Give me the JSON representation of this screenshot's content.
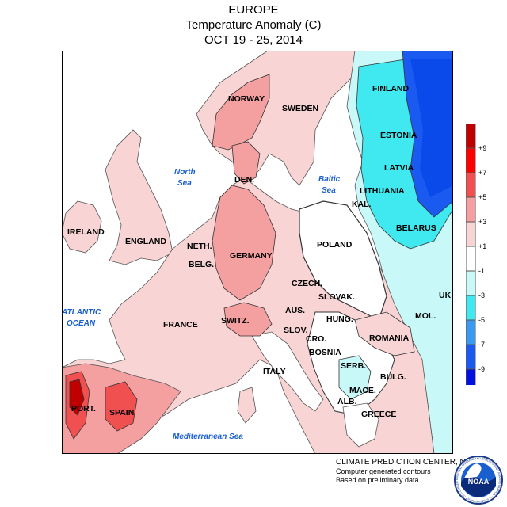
{
  "header": {
    "line1": "EUROPE",
    "line2": "Temperature Anomaly (C)",
    "line3": "OCT 19 - 25, 2014"
  },
  "countries": [
    {
      "label": "NORWAY"
    },
    {
      "label": "SWEDEN"
    },
    {
      "label": "FINLAND"
    },
    {
      "label": "ESTONIA"
    },
    {
      "label": "LATVIA"
    },
    {
      "label": "LITHUANIA"
    },
    {
      "label": "KAL."
    },
    {
      "label": "BELARUS"
    },
    {
      "label": "DEN."
    },
    {
      "label": "IRELAND"
    },
    {
      "label": "ENGLAND"
    },
    {
      "label": "NETH."
    },
    {
      "label": "BELG."
    },
    {
      "label": "GERMANY"
    },
    {
      "label": "POLAND"
    },
    {
      "label": "CZECH."
    },
    {
      "label": "SLOVAK."
    },
    {
      "label": "UK"
    },
    {
      "label": "AUS."
    },
    {
      "label": "SWITZ."
    },
    {
      "label": "FRANCE"
    },
    {
      "label": "SLOV."
    },
    {
      "label": "HUNG."
    },
    {
      "label": "CRO."
    },
    {
      "label": "BOSNIA"
    },
    {
      "label": "ROMANIA"
    },
    {
      "label": "MOL."
    },
    {
      "label": "SERB."
    },
    {
      "label": "BULG."
    },
    {
      "label": "ITALY"
    },
    {
      "label": "MACE."
    },
    {
      "label": "ALB."
    },
    {
      "label": "GREECE"
    },
    {
      "label": "PORT."
    },
    {
      "label": "SPAIN"
    }
  ],
  "seas": [
    {
      "label": "North"
    },
    {
      "label": "Sea"
    },
    {
      "label": "Baltic"
    },
    {
      "label": "Sea"
    },
    {
      "label": "ATLANTIC"
    },
    {
      "label": "OCEAN"
    },
    {
      "label": "Mediterranean Sea"
    }
  ],
  "legend": {
    "bins": [
      {
        "label": "+9",
        "color": "#c00000"
      },
      {
        "label": "+7",
        "color": "#ff0000"
      },
      {
        "label": "+5",
        "color": "#f05050"
      },
      {
        "label": "+3",
        "color": "#f4a0a0"
      },
      {
        "label": "+1",
        "color": "#f9d4d4"
      },
      {
        "label": "-1",
        "color": "#ffffff"
      },
      {
        "label": "-3",
        "color": "#c8f8f8"
      },
      {
        "label": "-5",
        "color": "#40e8f0"
      },
      {
        "label": "-7",
        "color": "#3a9af0"
      },
      {
        "label": "-9",
        "color": "#1a5af0"
      }
    ],
    "bottom_color": "#0010e0"
  },
  "credits": {
    "line1": "CLIMATE PREDICTION CENTER, NOAA",
    "line2": "Computer generated contours",
    "line3": "Based on preliminary data"
  },
  "logo": {
    "text": "NOAA",
    "ring_text": "NATIONAL OCEANIC AND ATMOSPHERIC ADMINISTRATION · U.S. DEPARTMENT OF COMMERCE"
  }
}
